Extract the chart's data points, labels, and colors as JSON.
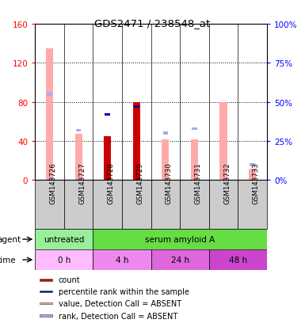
{
  "title": "GDS2471 / 238548_at",
  "samples": [
    "GSM143726",
    "GSM143727",
    "GSM143728",
    "GSM143729",
    "GSM143730",
    "GSM143731",
    "GSM143732",
    "GSM143733"
  ],
  "count_values": [
    0,
    0,
    45,
    80,
    0,
    0,
    0,
    0
  ],
  "value_absent": [
    135,
    47,
    0,
    0,
    42,
    42,
    80,
    12
  ],
  "rank_absent_pct": [
    55,
    32,
    0,
    0,
    30,
    33,
    0,
    10
  ],
  "rank_present_pct": [
    0,
    0,
    42,
    47,
    0,
    0,
    0,
    0
  ],
  "ylim_left": [
    0,
    160
  ],
  "ylim_right": [
    0,
    100
  ],
  "yticks_left": [
    0,
    40,
    80,
    120,
    160
  ],
  "yticks_right": [
    0,
    25,
    50,
    75,
    100
  ],
  "ytick_labels_left": [
    "0",
    "40",
    "80",
    "120",
    "160"
  ],
  "ytick_labels_right": [
    "0%",
    "25%",
    "50%",
    "75%",
    "100%"
  ],
  "color_count": "#cc0000",
  "color_rank_present": "#0000aa",
  "color_value_absent": "#ffaaaa",
  "color_rank_absent": "#aaaaee",
  "agent_labels": [
    {
      "label": "untreated",
      "start": 0,
      "end": 2,
      "color": "#99ee99"
    },
    {
      "label": "serum amyloid A",
      "start": 2,
      "end": 8,
      "color": "#66dd44"
    }
  ],
  "time_labels": [
    {
      "label": "0 h",
      "start": 0,
      "end": 2,
      "color": "#ffbbff"
    },
    {
      "label": "4 h",
      "start": 2,
      "end": 4,
      "color": "#ee88ee"
    },
    {
      "label": "24 h",
      "start": 4,
      "end": 6,
      "color": "#dd66dd"
    },
    {
      "label": "48 h",
      "start": 6,
      "end": 8,
      "color": "#cc44cc"
    }
  ],
  "legend_items": [
    {
      "color": "#cc0000",
      "label": "count"
    },
    {
      "color": "#0000aa",
      "label": "percentile rank within the sample"
    },
    {
      "color": "#ffaaaa",
      "label": "value, Detection Call = ABSENT"
    },
    {
      "color": "#aaaaee",
      "label": "rank, Detection Call = ABSENT"
    }
  ],
  "bar_width": 0.25,
  "marker_size": 0.18
}
